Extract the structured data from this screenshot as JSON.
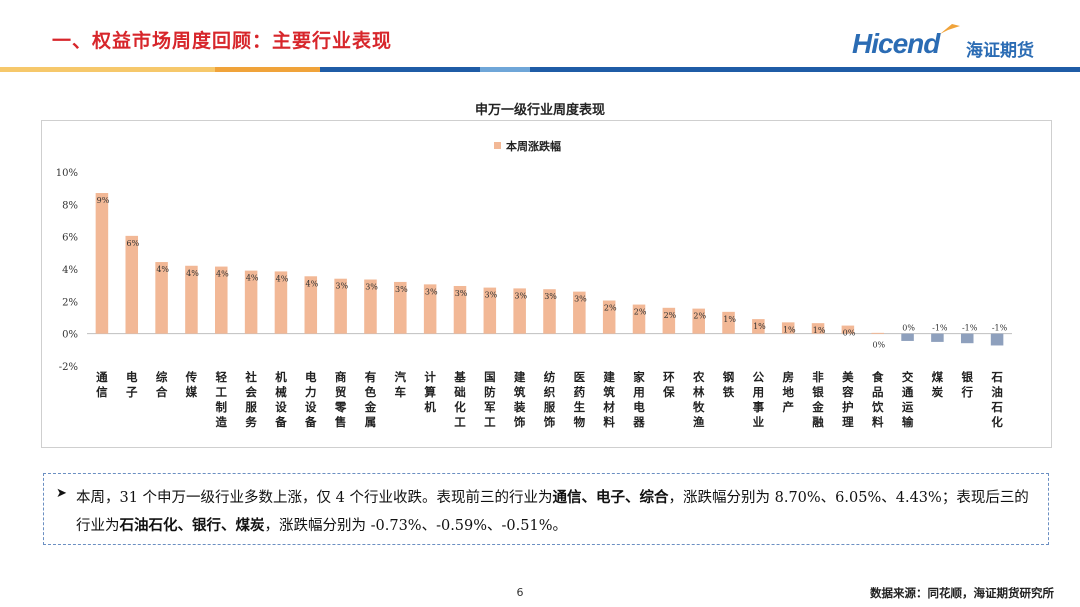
{
  "header": {
    "title": "一、权益市场周度回顾：主要行业表现",
    "logo_en": "Hicend",
    "logo_cn": "海证期货"
  },
  "colors": {
    "title_red": "#d7262b",
    "bar_positive": "#f2b896",
    "bar_negative": "#8ea0bd",
    "band_yellow": "#f6c86b",
    "band_orange": "#f0a33a",
    "band_blue": "#1f5ca6",
    "band_light": "#6fa6d8"
  },
  "chart_data": {
    "type": "bar",
    "title": "申万一级行业周度表现",
    "legend": [
      "本周涨跌幅"
    ],
    "legend_position": "top-center",
    "ylim": [
      -2,
      10
    ],
    "yticks": [
      "10%",
      "8%",
      "6%",
      "4%",
      "2%",
      "0%",
      "-2%"
    ],
    "categories": [
      "通信",
      "电子",
      "综合",
      "传媒",
      "轻工制造",
      "社会服务",
      "机械设备",
      "电力设备",
      "商贸零售",
      "有色金属",
      "汽车",
      "计算机",
      "基础化工",
      "国防军工",
      "建筑装饰",
      "纺织服饰",
      "医药生物",
      "建筑材料",
      "家用电器",
      "环保",
      "农林牧渔",
      "钢铁",
      "公用事业",
      "房地产",
      "非银金融",
      "美容护理",
      "食品饮料",
      "交通运输",
      "煤炭",
      "银行",
      "石油石化"
    ],
    "values": [
      8.7,
      6.05,
      4.43,
      4.2,
      4.15,
      3.9,
      3.85,
      3.55,
      3.4,
      3.35,
      3.2,
      3.05,
      2.95,
      2.85,
      2.8,
      2.75,
      2.6,
      2.05,
      1.8,
      1.6,
      1.55,
      1.35,
      0.9,
      0.7,
      0.65,
      0.5,
      0.05,
      -0.45,
      -0.51,
      -0.59,
      -0.73
    ],
    "data_labels": [
      "9%",
      "6%",
      "4%",
      "4%",
      "4%",
      "4%",
      "4%",
      "4%",
      "3%",
      "3%",
      "3%",
      "3%",
      "3%",
      "3%",
      "3%",
      "3%",
      "3%",
      "2%",
      "2%",
      "2%",
      "2%",
      "1%",
      "1%",
      "1%",
      "1%",
      "0%",
      "0%",
      "0%",
      "-1%",
      "-1%",
      "-1%"
    ]
  },
  "summary": {
    "p1": "本周，31 个申万一级行业多数上涨，仅 4 个行业收跌。表现前三的行业为",
    "top3": "通信、电子、综合",
    "p2": "，涨跌幅分别为 8.70%、6.05%、4.43%；表现后三的行业为",
    "bottom3": "石油石化、银行、煤炭",
    "p3": "，涨跌幅分别为 -0.73%、-0.59%、-0.51%。"
  },
  "footer": {
    "page_number": "6",
    "source": "数据来源：同花顺，海证期货研究所"
  }
}
